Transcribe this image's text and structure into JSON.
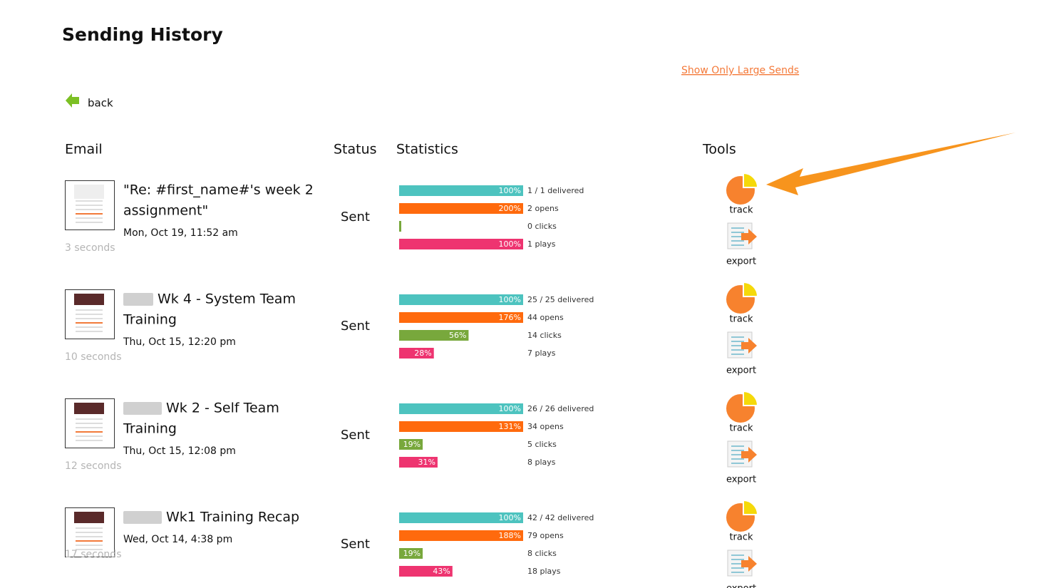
{
  "header": {
    "title": "Sending History",
    "link": "Show Only Large Sends",
    "back": "back"
  },
  "columns": [
    "Email",
    "Status",
    "Statistics",
    "Tools"
  ],
  "rows": [
    {
      "subject": [
        "\"Re: #first_name#'s week 2",
        "assignment\""
      ],
      "date": "Mon, Oct 19, 11:52 am",
      "elapsed": "3 seconds",
      "status": "Sent",
      "stats": [
        {
          "percent": 100,
          "label": "100%",
          "text": "1 / 1 delivered"
        },
        {
          "percent": 200,
          "label": "200%",
          "text": "2 opens"
        },
        {
          "percent": 0,
          "label": "",
          "text": "0 clicks"
        },
        {
          "percent": 100,
          "label": "100%",
          "text": "1 plays"
        }
      ],
      "tools": [
        "track",
        "export"
      ]
    },
    {
      "subject": [
        "Wk 4 - System Team",
        "Training"
      ],
      "date": "Thu, Oct 15, 12:20 pm",
      "elapsed": "10 seconds",
      "status": "Sent",
      "stats": [
        {
          "percent": 100,
          "label": "100%",
          "text": "25 / 25 delivered"
        },
        {
          "percent": 176,
          "label": "176%",
          "text": "44 opens"
        },
        {
          "percent": 56,
          "label": "56%",
          "text": "14 clicks"
        },
        {
          "percent": 28,
          "label": "28%",
          "text": "7 plays"
        }
      ],
      "tools": [
        "track",
        "export"
      ]
    },
    {
      "subject": [
        "Wk 2 - Self Team",
        "Training"
      ],
      "date": "Thu, Oct 15, 12:08 pm",
      "elapsed": "12 seconds",
      "status": "Sent",
      "stats": [
        {
          "percent": 100,
          "label": "100%",
          "text": "26 / 26 delivered"
        },
        {
          "percent": 131,
          "label": "131%",
          "text": "34 opens"
        },
        {
          "percent": 19,
          "label": "19%",
          "text": "5 clicks"
        },
        {
          "percent": 31,
          "label": "31%",
          "text": "8 plays"
        }
      ],
      "tools": [
        "track",
        "export"
      ]
    },
    {
      "subject": [
        "Wk1 Training Recap"
      ],
      "date": "Wed, Oct 14, 4:38 pm",
      "elapsed": "17 seconds",
      "status": "Sent",
      "stats": [
        {
          "percent": 100,
          "label": "100%",
          "text": "42 / 42 delivered"
        },
        {
          "percent": 188,
          "label": "188%",
          "text": "79 opens"
        },
        {
          "percent": 19,
          "label": "19%",
          "text": "8 clicks"
        },
        {
          "percent": 43,
          "label": "43%",
          "text": "18 plays"
        }
      ],
      "tools": [
        "track",
        "export"
      ]
    }
  ]
}
